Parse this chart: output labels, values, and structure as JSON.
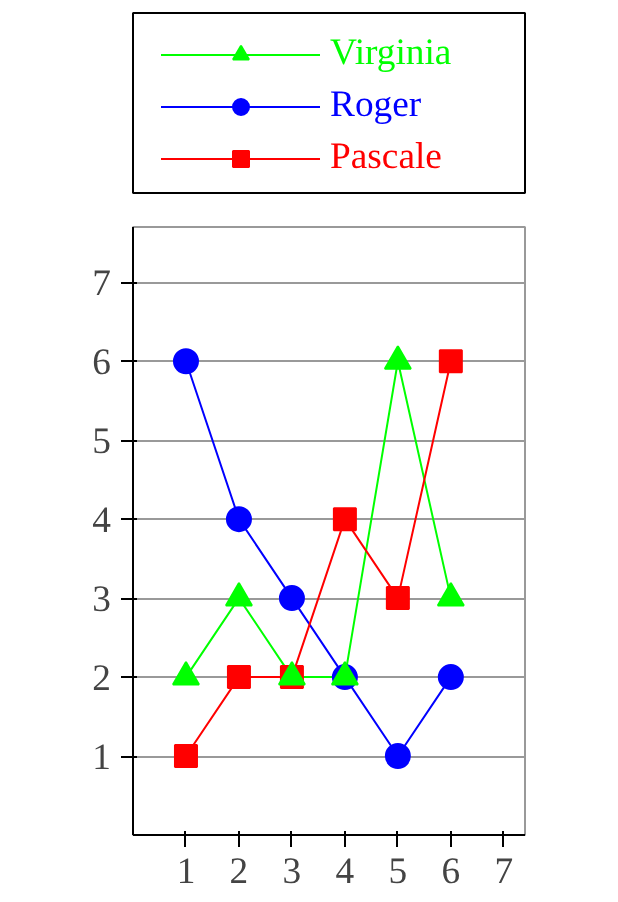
{
  "chart_data": {
    "type": "line",
    "x": [
      1,
      2,
      3,
      4,
      5,
      6
    ],
    "series": [
      {
        "name": "Virginia",
        "color": "#00ff00",
        "marker": "triangle",
        "values": [
          2,
          3,
          2,
          2,
          6,
          3
        ]
      },
      {
        "name": "Roger",
        "color": "#0000ff",
        "marker": "circle",
        "values": [
          6,
          4,
          3,
          2,
          1,
          2
        ]
      },
      {
        "name": "Pascale",
        "color": "#ff0000",
        "marker": "square",
        "values": [
          1,
          2,
          2,
          4,
          3,
          6
        ]
      }
    ],
    "xlim": [
      0,
      7.4
    ],
    "ylim": [
      0,
      7.7
    ],
    "xticks": [
      1,
      2,
      3,
      4,
      5,
      6,
      7
    ],
    "yticks": [
      1,
      2,
      3,
      4,
      5,
      6,
      7
    ],
    "grid": "y",
    "legend": "top",
    "line_style": "solid"
  }
}
